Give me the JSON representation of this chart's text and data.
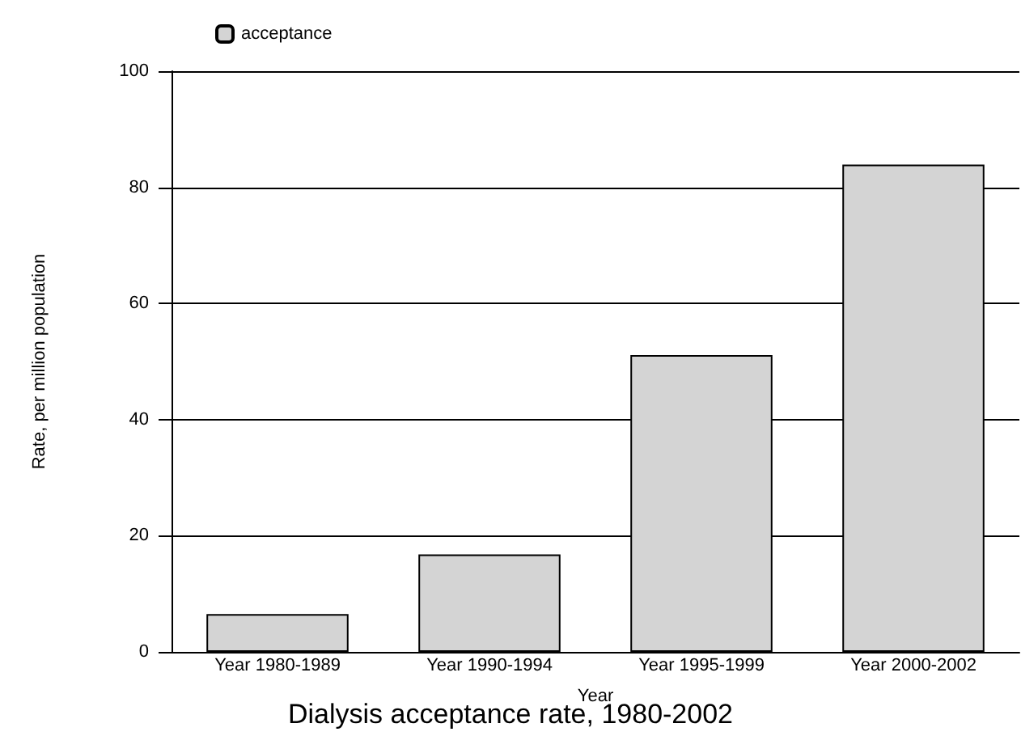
{
  "chart_data": {
    "type": "bar",
    "title": "Dialysis acceptance rate, 1980-2002",
    "xlabel": "Year",
    "ylabel": "Rate, per million population",
    "categories": [
      "Year 1980-1989",
      "Year 1990-1994",
      "Year 1995-1999",
      "Year 2000-2002"
    ],
    "series": [
      {
        "name": "acceptance",
        "color": "#d4d4d4",
        "values": [
          6.5,
          16.8,
          51.1,
          83.9
        ]
      }
    ],
    "ylim": [
      0,
      100
    ],
    "yticks": [
      0,
      20,
      40,
      60,
      80,
      100
    ],
    "grid": "y",
    "legend": "top left"
  }
}
